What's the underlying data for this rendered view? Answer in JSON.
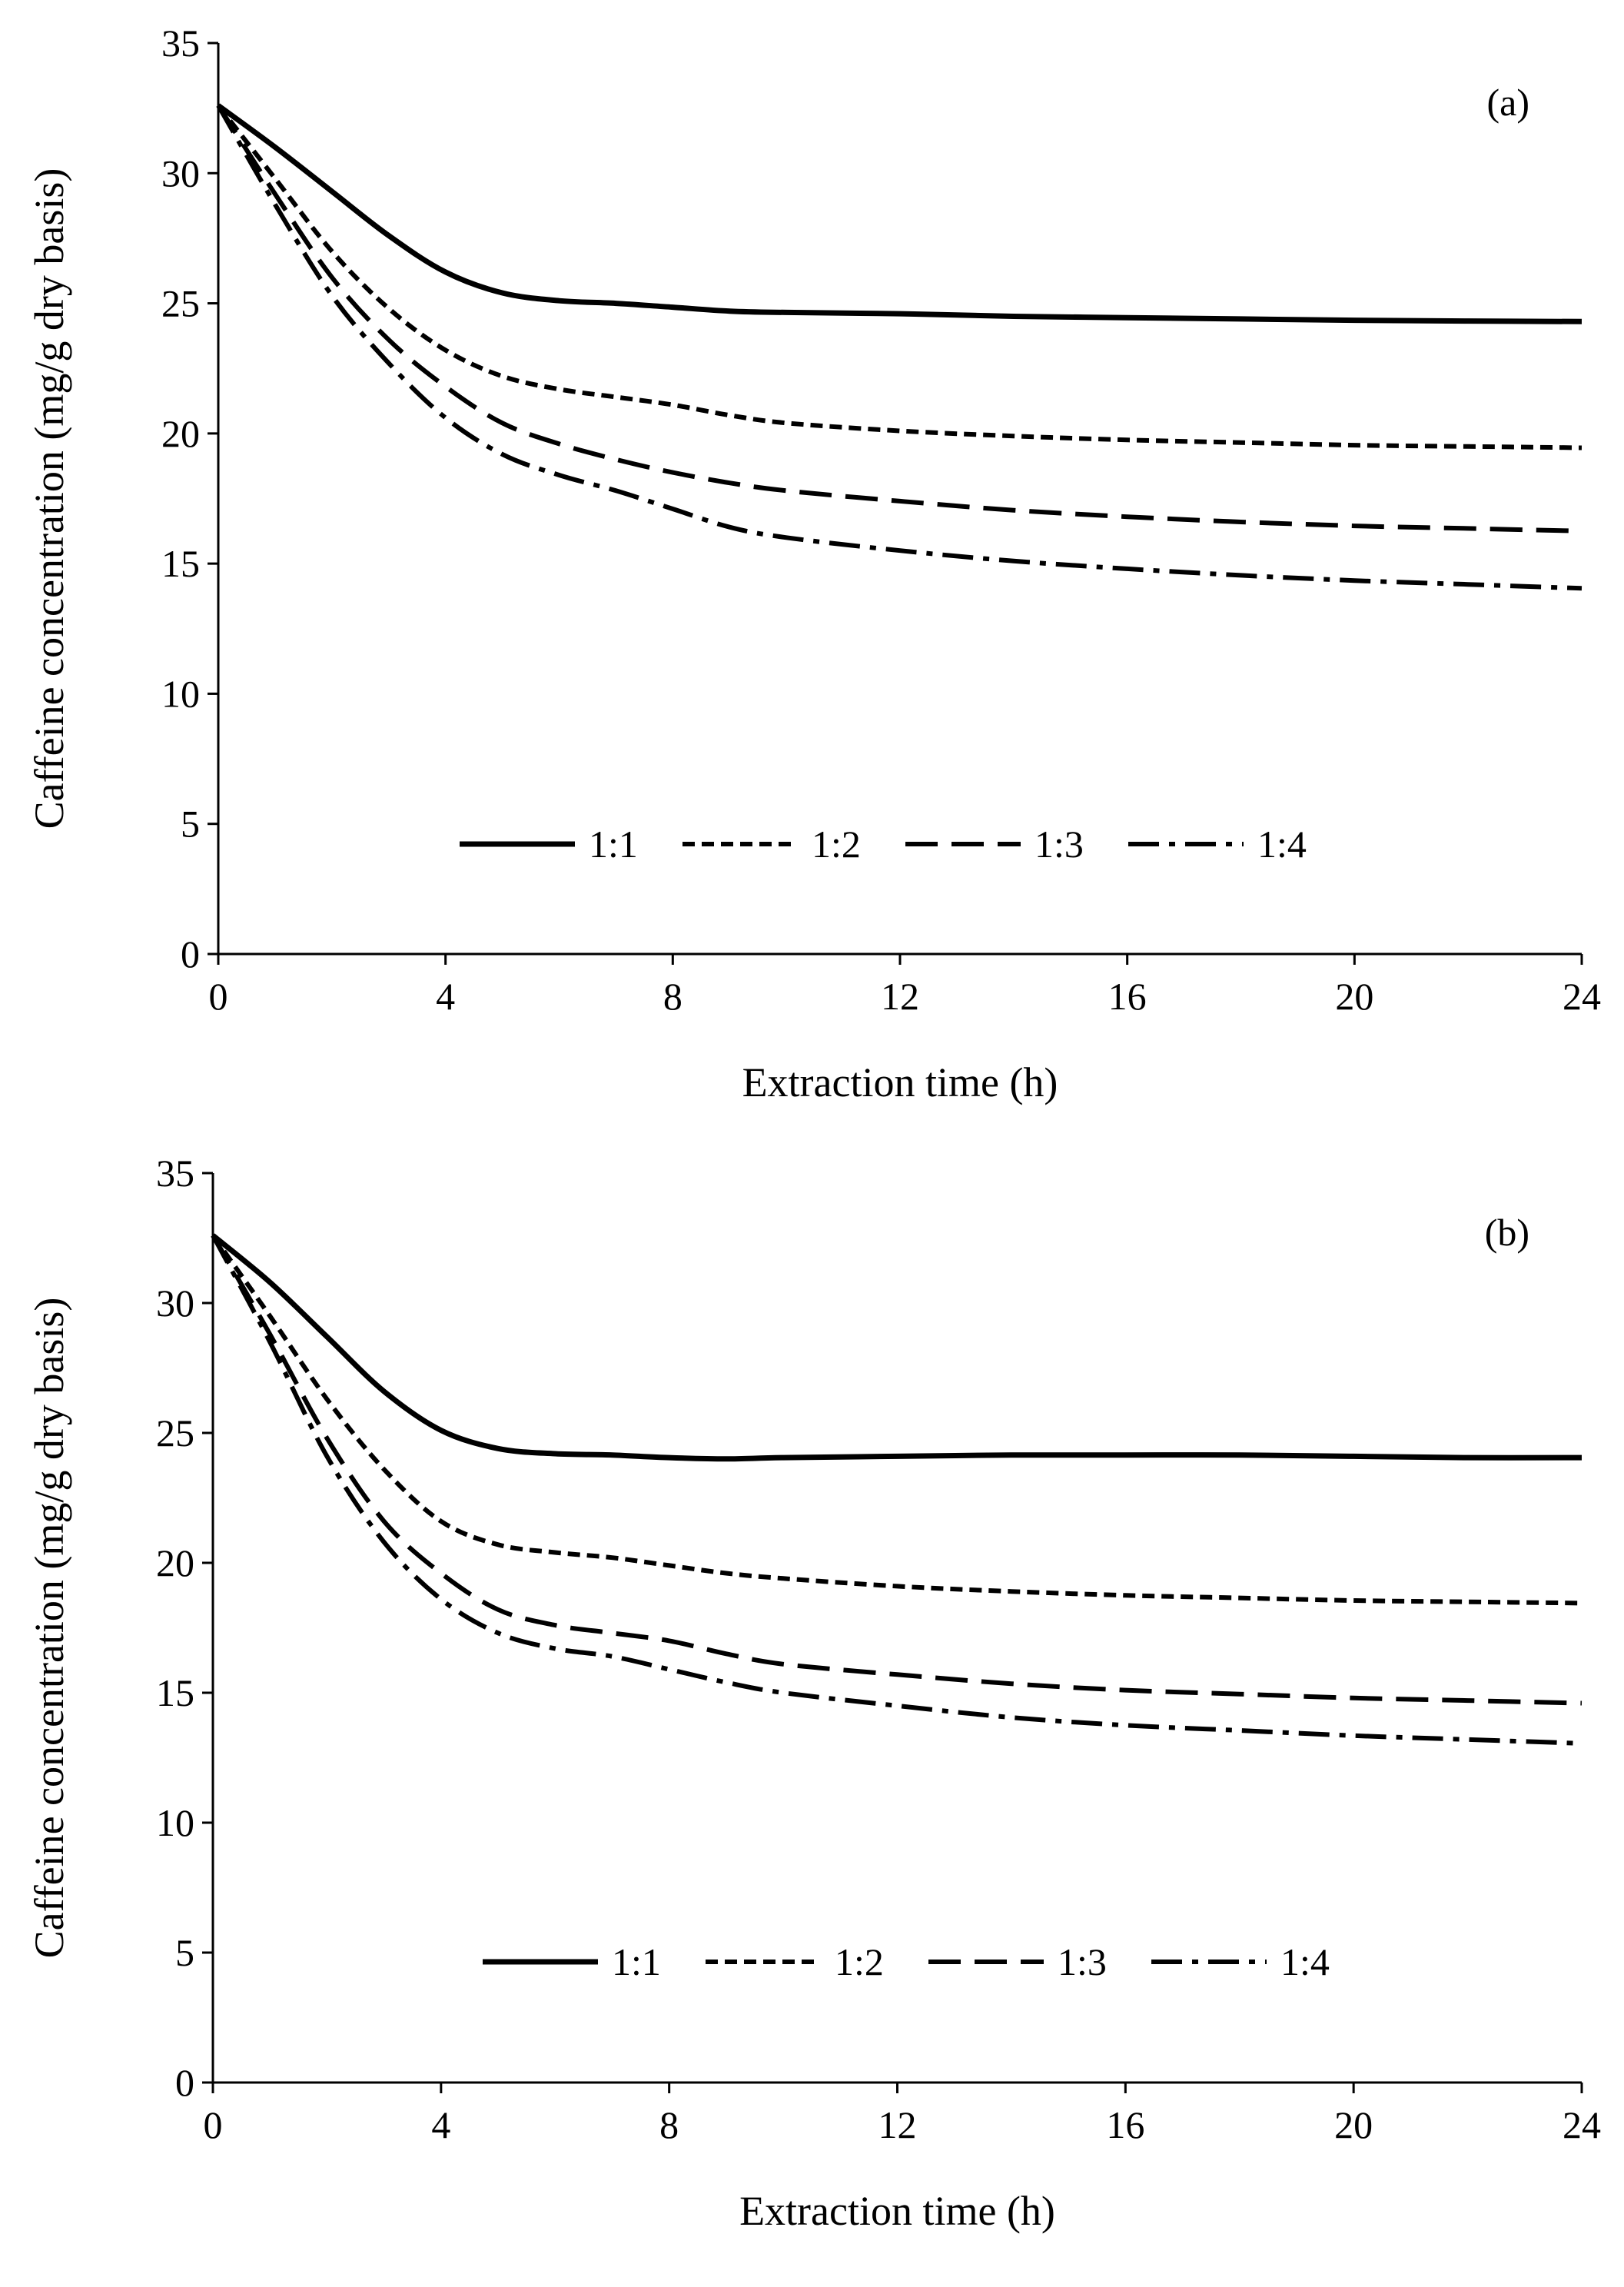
{
  "chart_data": [
    {
      "type": "line",
      "panel_label": "(a)",
      "xlabel": "Extraction time (h)",
      "ylabel": "Caffeine concentration (mg/g dry basis)",
      "xlim": [
        0,
        24
      ],
      "ylim": [
        0,
        35
      ],
      "xticks": [
        0,
        4,
        8,
        12,
        16,
        20,
        24
      ],
      "yticks": [
        0,
        5,
        10,
        15,
        20,
        25,
        30,
        35
      ],
      "grid": false,
      "legend_position": "bottom-center",
      "x": [
        0,
        1,
        2,
        3,
        4,
        5,
        6,
        7,
        8,
        9,
        10,
        12,
        14,
        16,
        18,
        20,
        22,
        24
      ],
      "series": [
        {
          "name": "1:1",
          "style": "solid",
          "values": [
            32.6,
            31.0,
            29.3,
            27.6,
            26.2,
            25.4,
            25.1,
            25.0,
            24.85,
            24.7,
            24.65,
            24.6,
            24.5,
            24.45,
            24.4,
            24.35,
            24.32,
            24.3
          ]
        },
        {
          "name": "1:2",
          "style": "short-dash",
          "values": [
            32.6,
            29.8,
            27.0,
            24.8,
            23.2,
            22.2,
            21.7,
            21.4,
            21.1,
            20.7,
            20.4,
            20.1,
            19.9,
            19.75,
            19.65,
            19.55,
            19.5,
            19.45
          ]
        },
        {
          "name": "1:3",
          "style": "long-dash",
          "values": [
            32.6,
            29.2,
            26.0,
            23.6,
            21.8,
            20.4,
            19.6,
            19.0,
            18.5,
            18.1,
            17.8,
            17.4,
            17.05,
            16.8,
            16.6,
            16.45,
            16.35,
            16.25
          ]
        },
        {
          "name": "1:4",
          "style": "dash-dot",
          "values": [
            32.6,
            28.8,
            25.3,
            22.7,
            20.6,
            19.2,
            18.4,
            17.8,
            17.1,
            16.4,
            16.0,
            15.5,
            15.1,
            14.8,
            14.55,
            14.35,
            14.2,
            14.05
          ]
        }
      ]
    },
    {
      "type": "line",
      "panel_label": "(b)",
      "xlabel": "Extraction time (h)",
      "ylabel": "Caffeine concentration (mg/g dry basis)",
      "xlim": [
        0,
        24
      ],
      "ylim": [
        0,
        35
      ],
      "xticks": [
        0,
        4,
        8,
        12,
        16,
        20,
        24
      ],
      "yticks": [
        0,
        5,
        10,
        15,
        20,
        25,
        30,
        35
      ],
      "grid": false,
      "legend_position": "bottom-center",
      "x": [
        0,
        1,
        2,
        3,
        4,
        5,
        6,
        7,
        8,
        9,
        10,
        12,
        14,
        16,
        18,
        20,
        22,
        24
      ],
      "series": [
        {
          "name": "1:1",
          "style": "solid",
          "values": [
            32.6,
            30.8,
            28.7,
            26.6,
            25.1,
            24.4,
            24.2,
            24.15,
            24.05,
            24.0,
            24.05,
            24.1,
            24.15,
            24.15,
            24.15,
            24.1,
            24.05,
            24.05
          ]
        },
        {
          "name": "1:2",
          "style": "short-dash",
          "values": [
            32.6,
            29.5,
            26.3,
            23.6,
            21.6,
            20.7,
            20.4,
            20.2,
            19.9,
            19.6,
            19.4,
            19.1,
            18.9,
            18.75,
            18.65,
            18.55,
            18.5,
            18.45
          ]
        },
        {
          "name": "1:3",
          "style": "long-dash",
          "values": [
            32.6,
            28.8,
            24.8,
            21.6,
            19.6,
            18.2,
            17.6,
            17.3,
            17.0,
            16.5,
            16.1,
            15.7,
            15.35,
            15.1,
            14.95,
            14.8,
            14.7,
            14.6
          ]
        },
        {
          "name": "1:4",
          "style": "dash-dot",
          "values": [
            32.6,
            28.5,
            24.1,
            20.8,
            18.6,
            17.3,
            16.7,
            16.4,
            15.9,
            15.4,
            15.0,
            14.5,
            14.05,
            13.75,
            13.55,
            13.35,
            13.2,
            13.05
          ]
        }
      ]
    }
  ]
}
